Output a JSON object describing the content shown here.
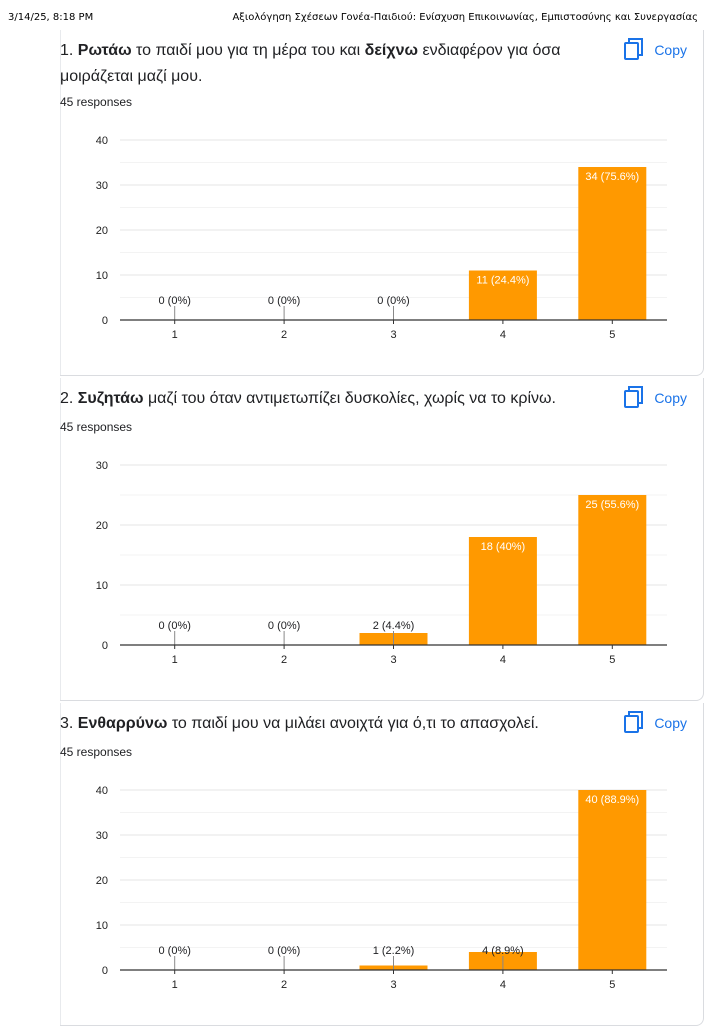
{
  "print_header": {
    "date": "3/14/25, 8:18 PM",
    "title": "Αξιολόγηση Σχέσεων Γονέα-Παιδιού: Ενίσχυση Επικοινωνίας, Εμπιστοσύνης και Συνεργασίας"
  },
  "copy_label": "Copy",
  "colors": {
    "bar": "#ff9900",
    "accent": "#1a73e8",
    "grid": "#e6e6e6",
    "axis": "#333333"
  },
  "questions": [
    {
      "number": "1.",
      "text_parts": [
        {
          "t": "Ρωτάω",
          "bold": true
        },
        {
          "t": " το παιδί μου για τη μέρα του και ",
          "bold": false
        },
        {
          "t": "δείχνω",
          "bold": true
        },
        {
          "t": " ενδιαφέρον για όσα μοιράζεται μαζί μου.",
          "bold": false
        }
      ],
      "responses": "45 responses"
    },
    {
      "number": "2.",
      "text_parts": [
        {
          "t": "Συζητάω",
          "bold": true
        },
        {
          "t": " μαζί του όταν αντιμετωπίζει δυσκολίες, χωρίς να το κρίνω.",
          "bold": false
        }
      ],
      "responses": "45 responses"
    },
    {
      "number": "3.",
      "text_parts": [
        {
          "t": "Ενθαρρύνω",
          "bold": true
        },
        {
          "t": " το παιδί μου να μιλάει ανοιχτά για ό,τι το απασχολεί.",
          "bold": false
        }
      ],
      "responses": "45 responses"
    }
  ],
  "chart_data": [
    {
      "type": "bar",
      "categories": [
        "1",
        "2",
        "3",
        "4",
        "5"
      ],
      "values": [
        0,
        0,
        0,
        11,
        34
      ],
      "labels": [
        "0 (0%)",
        "0 (0%)",
        "0 (0%)",
        "11 (24.4%)",
        "34 (75.6%)"
      ],
      "ylim": [
        0,
        40
      ],
      "yticks": [
        0,
        10,
        20,
        30,
        40
      ],
      "grid": true,
      "bar_color": "#ff9900"
    },
    {
      "type": "bar",
      "categories": [
        "1",
        "2",
        "3",
        "4",
        "5"
      ],
      "values": [
        0,
        0,
        2,
        18,
        25
      ],
      "labels": [
        "0 (0%)",
        "0 (0%)",
        "2 (4.4%)",
        "18 (40%)",
        "25 (55.6%)"
      ],
      "ylim": [
        0,
        30
      ],
      "yticks": [
        0,
        10,
        20,
        30
      ],
      "grid": true,
      "bar_color": "#ff9900"
    },
    {
      "type": "bar",
      "categories": [
        "1",
        "2",
        "3",
        "4",
        "5"
      ],
      "values": [
        0,
        0,
        1,
        4,
        40
      ],
      "labels": [
        "0 (0%)",
        "0 (0%)",
        "1 (2.2%)",
        "4 (8.9%)",
        "40 (88.9%)"
      ],
      "ylim": [
        0,
        40
      ],
      "yticks": [
        0,
        10,
        20,
        30,
        40
      ],
      "grid": true,
      "bar_color": "#ff9900"
    }
  ]
}
